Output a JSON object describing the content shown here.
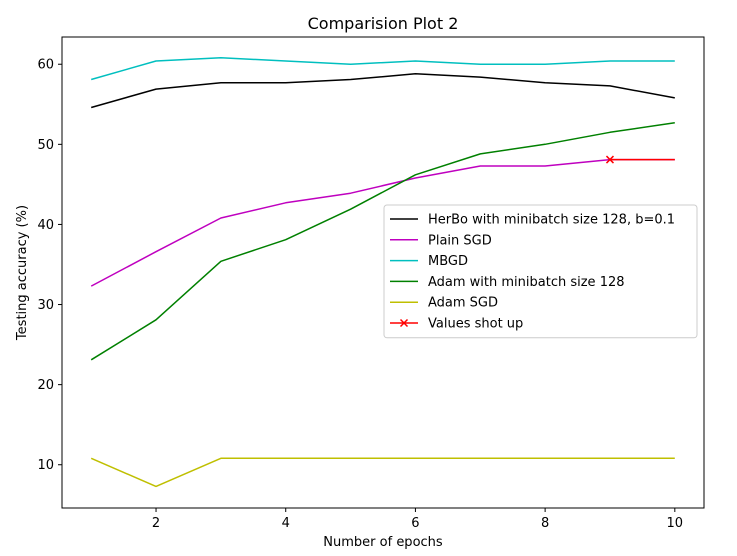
{
  "chart_data": {
    "type": "line",
    "title": "Comparision Plot 2",
    "xlabel": "Number of epochs",
    "ylabel": "Testing accuracy (%)",
    "xlim": [
      0.55,
      10.45
    ],
    "ylim": [
      4.6,
      63.4
    ],
    "xticks": [
      2,
      4,
      6,
      8,
      10
    ],
    "yticks": [
      10,
      20,
      30,
      40,
      50,
      60
    ],
    "grid": false,
    "legend_position": "center-right",
    "series": [
      {
        "name": "HerBo with minibatch size 128, b=0.1",
        "color": "#000000",
        "marker": "none",
        "x": [
          1,
          2,
          3,
          4,
          5,
          6,
          7,
          8,
          9,
          10
        ],
        "y": [
          54.6,
          56.9,
          57.7,
          57.7,
          58.1,
          58.8,
          58.4,
          57.7,
          57.3,
          55.8
        ]
      },
      {
        "name": "Plain SGD",
        "color": "#bf00bf",
        "marker": "none",
        "x": [
          1,
          2,
          3,
          4,
          5,
          6,
          7,
          8,
          9,
          10
        ],
        "y": [
          32.3,
          36.6,
          40.8,
          42.7,
          43.9,
          45.8,
          47.3,
          47.3,
          48.1,
          48.1
        ]
      },
      {
        "name": "MBGD",
        "color": "#00bfbf",
        "marker": "none",
        "x": [
          1,
          2,
          3,
          4,
          5,
          6,
          7,
          8,
          9,
          10
        ],
        "y": [
          58.1,
          60.4,
          60.8,
          60.4,
          60.0,
          60.4,
          60.0,
          60.0,
          60.4,
          60.4
        ]
      },
      {
        "name": "Adam with minibatch size 128",
        "color": "#008000",
        "marker": "none",
        "x": [
          1,
          2,
          3,
          4,
          5,
          6,
          7,
          8,
          9,
          10
        ],
        "y": [
          23.1,
          28.1,
          35.4,
          38.1,
          41.9,
          46.2,
          48.8,
          50.0,
          51.5,
          52.7
        ]
      },
      {
        "name": "Adam SGD",
        "color": "#bfbf00",
        "marker": "none",
        "x": [
          1,
          2,
          3,
          4,
          5,
          6,
          7,
          8,
          9,
          10
        ],
        "y": [
          10.8,
          7.3,
          10.8,
          10.8,
          10.8,
          10.8,
          10.8,
          10.8,
          10.8,
          10.8
        ]
      },
      {
        "name": "Values shot up",
        "color": "#ff0000",
        "marker": "x",
        "x": [
          9,
          10
        ],
        "y": [
          48.1,
          48.1
        ],
        "marker_at": [
          9
        ]
      }
    ]
  }
}
